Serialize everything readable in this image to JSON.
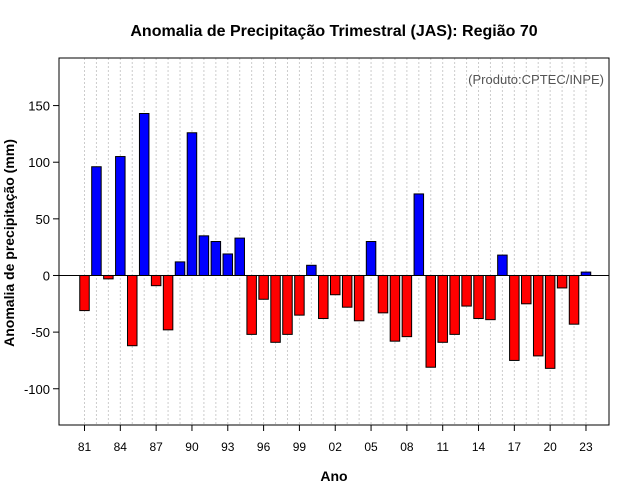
{
  "chart_data": {
    "type": "bar",
    "title": "Anomalia de Precipitação Trimestral (JAS): Região 70",
    "xlabel": "Ano",
    "ylabel": "Anomalia de precipitação (mm)",
    "credit": "(Produto:CPTEC/INPE)",
    "ylim": [
      -132,
      192
    ],
    "yticks": [
      -100,
      -50,
      0,
      50,
      100,
      150
    ],
    "xtick_years": [
      1981,
      1984,
      1987,
      1990,
      1993,
      1996,
      1999,
      2002,
      2005,
      2008,
      2011,
      2014,
      2017,
      2020,
      2023
    ],
    "xtick_labels": [
      "81",
      "84",
      "87",
      "90",
      "93",
      "96",
      "99",
      "02",
      "05",
      "08",
      "11",
      "14",
      "17",
      "20",
      "23"
    ],
    "grid": true,
    "positive_color": "#0000ff",
    "negative_color": "#ff0000",
    "years": [
      1981,
      1982,
      1983,
      1984,
      1985,
      1986,
      1987,
      1988,
      1989,
      1990,
      1991,
      1992,
      1993,
      1994,
      1995,
      1996,
      1997,
      1998,
      1999,
      2000,
      2001,
      2002,
      2003,
      2004,
      2005,
      2006,
      2007,
      2008,
      2009,
      2010,
      2011,
      2012,
      2013,
      2014,
      2015,
      2016,
      2017,
      2018,
      2019,
      2020,
      2021,
      2022,
      2023
    ],
    "values": [
      -31,
      96,
      -3,
      105,
      -62,
      143,
      -9,
      -48,
      12,
      126,
      35,
      30,
      19,
      33,
      -52,
      -21,
      -59,
      -52,
      -35,
      9,
      -38,
      -17,
      -28,
      -40,
      30,
      -33,
      -58,
      -54,
      72,
      -81,
      -59,
      -52,
      -27,
      -38,
      -39,
      18,
      -75,
      -25,
      -71,
      -82,
      -11,
      -43,
      3
    ]
  }
}
